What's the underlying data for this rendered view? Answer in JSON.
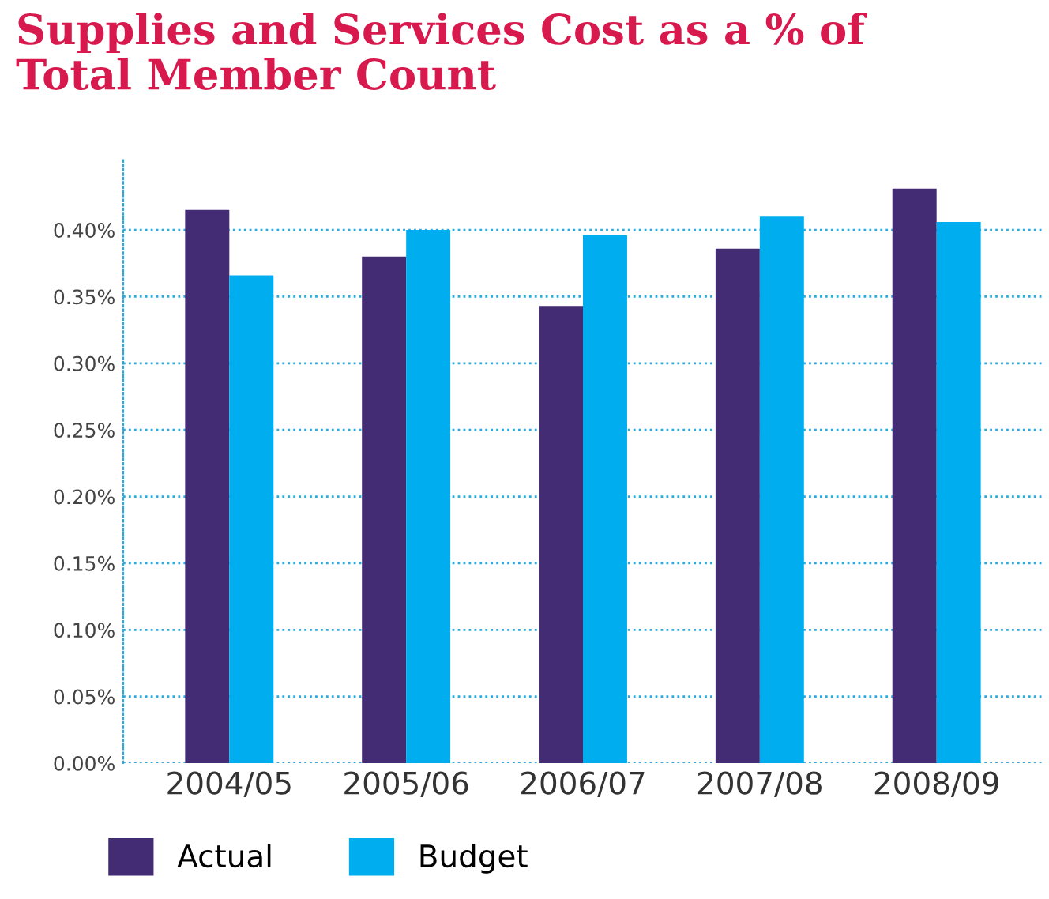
{
  "chart_data": {
    "type": "bar",
    "title": "Supplies and Services Cost as a % of\nTotal Member Count",
    "categories": [
      "2004/05",
      "2005/06",
      "2006/07",
      "2007/08",
      "2008/09"
    ],
    "series": [
      {
        "name": "Actual",
        "color": "#432c73",
        "values": [
          0.415,
          0.38,
          0.343,
          0.386,
          0.431
        ]
      },
      {
        "name": "Budget",
        "color": "#00aeef",
        "values": [
          0.366,
          0.4,
          0.396,
          0.41,
          0.406
        ]
      }
    ],
    "ylim": [
      0,
      0.454
    ],
    "yticks": [
      {
        "value": 0,
        "label": "0.00%"
      },
      {
        "value": 0.05,
        "label": "0.05%"
      },
      {
        "value": 0.1,
        "label": "0.10%"
      },
      {
        "value": 0.15,
        "label": "0.15%"
      },
      {
        "value": 0.2,
        "label": "0.20%"
      },
      {
        "value": 0.25,
        "label": "0.25%"
      },
      {
        "value": 0.3,
        "label": "0.30%"
      },
      {
        "value": 0.35,
        "label": "0.35%"
      },
      {
        "value": 0.4,
        "label": "0.40%"
      }
    ],
    "grid": "y",
    "legend": "bottom left"
  }
}
